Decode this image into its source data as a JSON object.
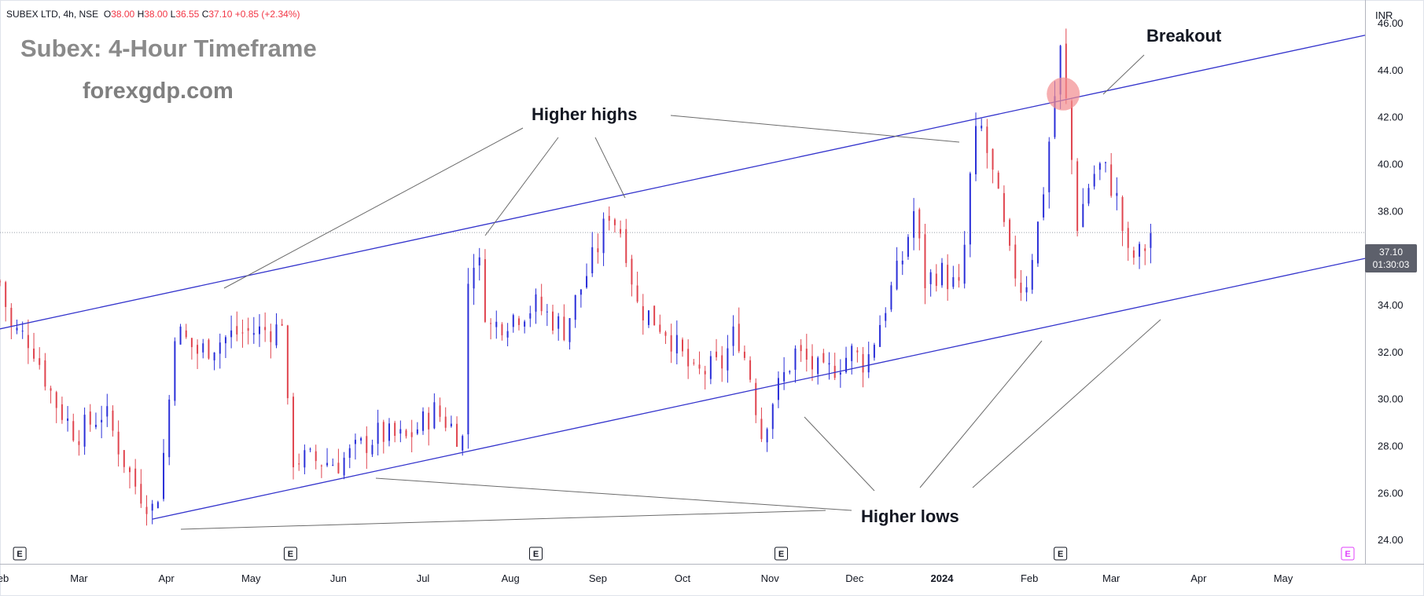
{
  "header": {
    "symbol": "SUBEX LTD",
    "interval": "4h",
    "exchange": "NSE",
    "o_label": "O",
    "o_value": "38.00",
    "h_label": "H",
    "h_value": "38.00",
    "l_label": "L",
    "l_value": "36.55",
    "c_label": "C",
    "c_value": "37.10",
    "change": "+0.85 (+2.34%)"
  },
  "overlay": {
    "title": "Subex: 4-Hour Timeframe",
    "website": "forexgdp.com",
    "higher_highs": "Higher highs",
    "higher_lows": "Higher lows",
    "breakout": "Breakout"
  },
  "price_axis": {
    "currency": "INR",
    "last_price": "37.10",
    "countdown": "01:30:03"
  },
  "colors": {
    "bull": "#2a2fd8",
    "bear": "#e0454f",
    "channel": "#3333cc",
    "breakout_marker": "#f28b8f"
  },
  "events_icon": "earnings-e-icon",
  "chart_data": {
    "type": "candlestick",
    "title": "Subex: 4-Hour Timeframe",
    "ylim": [
      23.0,
      47.0
    ],
    "y_ticks": [
      24.0,
      26.0,
      28.0,
      30.0,
      32.0,
      34.0,
      36.0,
      38.0,
      40.0,
      42.0,
      44.0,
      46.0
    ],
    "y_tick_labels": [
      "24.00",
      "26.00",
      "28.00",
      "30.00",
      "32.00",
      "34.00",
      "36.00",
      "38.00",
      "40.00",
      "42.00",
      "44.00",
      "46.00"
    ],
    "x_range": [
      "2023-02-01",
      "2024-05-30"
    ],
    "x_ticks": [
      {
        "date": "2023-02-01",
        "label": "Feb"
      },
      {
        "date": "2023-03-01",
        "label": "Mar"
      },
      {
        "date": "2023-04-01",
        "label": "Apr"
      },
      {
        "date": "2023-05-01",
        "label": "May"
      },
      {
        "date": "2023-06-01",
        "label": "Jun"
      },
      {
        "date": "2023-07-01",
        "label": "Jul"
      },
      {
        "date": "2023-08-01",
        "label": "Aug"
      },
      {
        "date": "2023-09-01",
        "label": "Sep"
      },
      {
        "date": "2023-10-01",
        "label": "Oct"
      },
      {
        "date": "2023-11-01",
        "label": "Nov"
      },
      {
        "date": "2023-12-01",
        "label": "Dec"
      },
      {
        "date": "2024-01-01",
        "label": "2024",
        "bold": true
      },
      {
        "date": "2024-02-01",
        "label": "Feb"
      },
      {
        "date": "2024-03-01",
        "label": "Mar"
      },
      {
        "date": "2024-04-01",
        "label": "Apr"
      },
      {
        "date": "2024-05-01",
        "label": "May"
      }
    ],
    "last_price": 37.1,
    "price_path": [
      [
        "2023-02-01",
        35.0
      ],
      [
        "2023-02-05",
        33.0
      ],
      [
        "2023-02-12",
        32.5
      ],
      [
        "2023-02-20",
        30.0
      ],
      [
        "2023-02-28",
        28.5
      ],
      [
        "2023-03-10",
        29.5
      ],
      [
        "2023-03-15",
        28.0
      ],
      [
        "2023-03-20",
        26.5
      ],
      [
        "2023-03-28",
        25.2
      ],
      [
        "2023-04-01",
        28.5
      ],
      [
        "2023-04-04",
        33.0
      ],
      [
        "2023-04-12",
        32.0
      ],
      [
        "2023-04-25",
        32.8
      ],
      [
        "2023-05-10",
        33.0
      ],
      [
        "2023-05-12",
        33.5
      ],
      [
        "2023-05-15",
        27.5
      ],
      [
        "2023-06-01",
        27.3
      ],
      [
        "2023-06-15",
        28.5
      ],
      [
        "2023-06-25",
        28.3
      ],
      [
        "2023-07-05",
        29.5
      ],
      [
        "2023-07-10",
        29.0
      ],
      [
        "2023-07-15",
        28.3
      ],
      [
        "2023-07-17",
        35.0
      ],
      [
        "2023-07-20",
        36.5
      ],
      [
        "2023-07-24",
        33.0
      ],
      [
        "2023-08-01",
        33.5
      ],
      [
        "2023-08-10",
        34.0
      ],
      [
        "2023-08-20",
        33.0
      ],
      [
        "2023-09-01",
        36.5
      ],
      [
        "2023-09-05",
        38.0
      ],
      [
        "2023-09-10",
        37.0
      ],
      [
        "2023-09-15",
        34.0
      ],
      [
        "2023-09-25",
        33.0
      ],
      [
        "2023-10-05",
        31.0
      ],
      [
        "2023-10-15",
        31.5
      ],
      [
        "2023-10-20",
        33.0
      ],
      [
        "2023-10-25",
        31.0
      ],
      [
        "2023-10-29",
        28.5
      ],
      [
        "2023-11-02",
        30.0
      ],
      [
        "2023-11-10",
        32.0
      ],
      [
        "2023-11-20",
        31.0
      ],
      [
        "2023-11-30",
        32.0
      ],
      [
        "2023-12-05",
        31.5
      ],
      [
        "2023-12-12",
        34.0
      ],
      [
        "2023-12-18",
        36.0
      ],
      [
        "2023-12-22",
        38.0
      ],
      [
        "2023-12-26",
        35.0
      ],
      [
        "2023-12-31",
        35.5
      ],
      [
        "2024-01-08",
        34.5
      ],
      [
        "2024-01-10",
        38.5
      ],
      [
        "2024-01-14",
        42.0
      ],
      [
        "2024-01-20",
        39.0
      ],
      [
        "2024-01-25",
        36.0
      ],
      [
        "2024-01-30",
        34.5
      ],
      [
        "2024-02-05",
        38.0
      ],
      [
        "2024-02-09",
        42.0
      ],
      [
        "2024-02-12",
        44.8
      ],
      [
        "2024-02-15",
        41.5
      ],
      [
        "2024-02-18",
        37.5
      ],
      [
        "2024-02-23",
        39.5
      ],
      [
        "2024-02-27",
        40.0
      ],
      [
        "2024-03-03",
        38.5
      ],
      [
        "2024-03-07",
        36.0
      ],
      [
        "2024-03-12",
        36.2
      ],
      [
        "2024-03-15",
        37.1
      ]
    ],
    "channel_lines": [
      {
        "name": "upper",
        "from": [
          "2023-02-01",
          33.0
        ],
        "to": [
          "2024-05-30",
          45.5
        ]
      },
      {
        "name": "lower",
        "from": [
          "2023-03-27",
          24.9
        ],
        "to": [
          "2024-05-30",
          36.0
        ]
      }
    ],
    "annotations": [
      "Higher highs",
      "Higher lows",
      "Breakout"
    ],
    "breakout_marker": {
      "date": "2024-02-13",
      "price": 43.0
    }
  }
}
